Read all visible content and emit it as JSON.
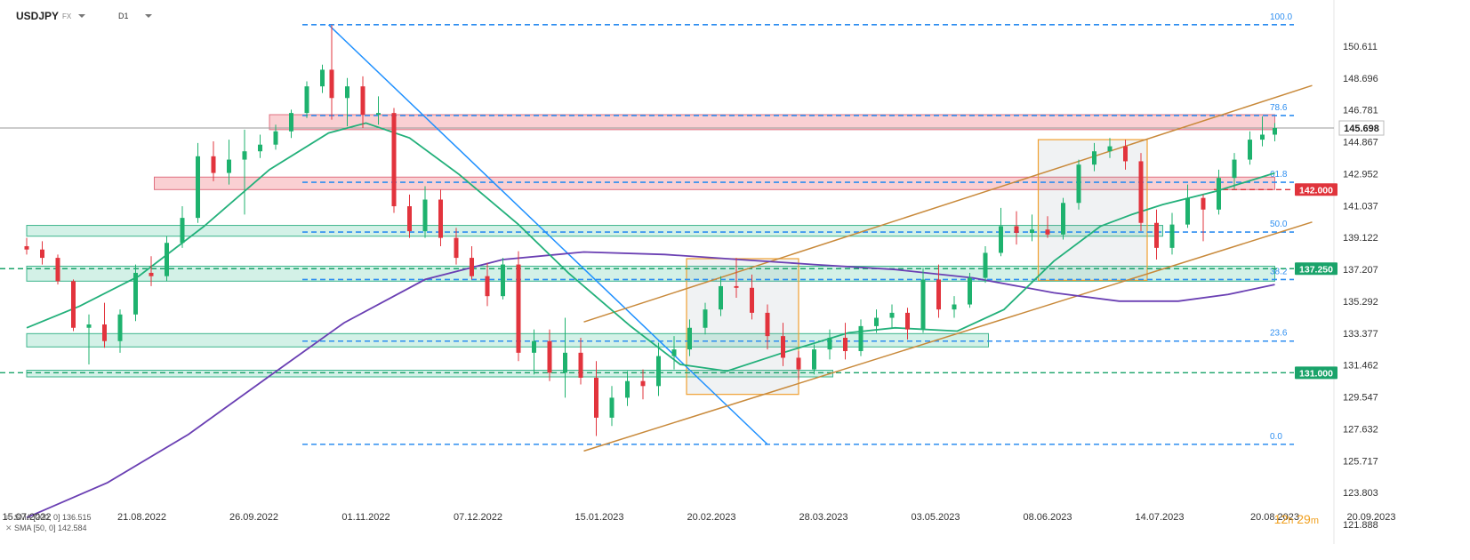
{
  "header": {
    "symbol": "USDJPY",
    "market": "FX",
    "interval": "D1"
  },
  "legend": [
    {
      "label": "SMA [200, 0] 136.515",
      "color": "#6a3fb3",
      "icon": "indicator-icon"
    },
    {
      "label": "SMA [50, 0] 142.584",
      "color": "#22b07a",
      "icon": "indicator-icon"
    }
  ],
  "timer": {
    "hours": "12",
    "h": "h",
    "minutes": "29",
    "m": "m"
  },
  "chart_data": {
    "type": "candlestick",
    "ylim": [
      121.888,
      152.0
    ],
    "y_ticks": [
      "150.611",
      "148.696",
      "146.781",
      "144.867",
      "142.952",
      "141.037",
      "139.122",
      "137.207",
      "135.292",
      "133.377",
      "131.462",
      "129.547",
      "127.632",
      "125.717",
      "123.803",
      "121.888"
    ],
    "x_ticks": [
      "15.07.2022",
      "21.08.2022",
      "26.09.2022",
      "01.11.2022",
      "07.12.2022",
      "15.01.2023",
      "20.02.2023",
      "28.03.2023",
      "03.05.2023",
      "08.06.2023",
      "14.07.2023",
      "20.08.2023",
      "20.09.2023"
    ],
    "last_price": {
      "value": 145.698,
      "label": "145.698"
    },
    "price_labels": [
      {
        "value": 142.0,
        "label": "142.000",
        "color": "#e0343c"
      },
      {
        "value": 137.25,
        "label": "137.250",
        "color": "#1aa36a"
      },
      {
        "value": 131.0,
        "label": "131.000",
        "color": "#1aa36a"
      }
    ],
    "fibonacci": [
      {
        "level": "100.0",
        "price": 151.9
      },
      {
        "level": "78.6",
        "price": 146.45
      },
      {
        "level": "61.8",
        "price": 142.44
      },
      {
        "level": "50.0",
        "price": 139.45
      },
      {
        "level": "38.2",
        "price": 136.6
      },
      {
        "level": "23.6",
        "price": 132.9
      },
      {
        "level": "0.0",
        "price": 126.7
      }
    ],
    "zones": [
      {
        "color": "red",
        "x0": "2022-10-01",
        "x1": "2023-08-20",
        "y0": 145.6,
        "y1": 146.5
      },
      {
        "color": "red",
        "x0": "2022-08-25",
        "x1": "2023-08-20",
        "y0": 142.0,
        "y1": 142.75
      },
      {
        "color": "green",
        "x0": "2022-07-15",
        "x1": "2023-07-15",
        "y0": 139.2,
        "y1": 139.85
      },
      {
        "color": "green",
        "x0": "2022-07-15",
        "x1": "2023-08-20",
        "y0": 136.5,
        "y1": 137.4
      },
      {
        "color": "green",
        "x0": "2022-07-15",
        "x1": "2023-05-20",
        "y0": 132.55,
        "y1": 133.35
      },
      {
        "color": "green",
        "x0": "2022-07-15",
        "x1": "2023-03-31",
        "y0": 130.75,
        "y1": 131.15
      }
    ],
    "boxes": [
      {
        "x0": "2023-02-12",
        "x1": "2023-03-20",
        "y0": 129.7,
        "y1": 137.85
      },
      {
        "x0": "2023-06-05",
        "x1": "2023-07-10",
        "y0": 136.55,
        "y1": 145.0
      }
    ],
    "lines": [
      {
        "color": "#1e90ff",
        "x0": "2022-10-20",
        "y0": 151.9,
        "x1": "2023-03-10",
        "y1": 126.7
      },
      {
        "color": "#c8893a",
        "x0": "2023-01-10",
        "y0": 126.3,
        "x1": "2023-09-01",
        "y1": 140.05
      },
      {
        "color": "#c8893a",
        "x0": "2023-01-10",
        "y0": 134.05,
        "x1": "2023-09-01",
        "y1": 148.25
      }
    ],
    "series": [
      {
        "name": "SMA [200, 0]",
        "color": "#6a3fb3",
        "points": [
          [
            "2022-07-15",
            122.3
          ],
          [
            "2022-08-10",
            124.4
          ],
          [
            "2022-09-05",
            127.3
          ],
          [
            "2022-10-01",
            130.8
          ],
          [
            "2022-10-25",
            134.0
          ],
          [
            "2022-11-20",
            136.6
          ],
          [
            "2022-12-15",
            137.8
          ],
          [
            "2023-01-10",
            138.25
          ],
          [
            "2023-02-05",
            138.1
          ],
          [
            "2023-03-01",
            137.8
          ],
          [
            "2023-03-25",
            137.5
          ],
          [
            "2023-04-20",
            137.2
          ],
          [
            "2023-05-15",
            136.7
          ],
          [
            "2023-06-10",
            135.8
          ],
          [
            "2023-07-01",
            135.3
          ],
          [
            "2023-07-20",
            135.3
          ],
          [
            "2023-08-05",
            135.7
          ],
          [
            "2023-08-20",
            136.3
          ]
        ]
      },
      {
        "name": "SMA [50, 0]",
        "color": "#22b07a",
        "points": [
          [
            "2022-07-15",
            133.7
          ],
          [
            "2022-08-01",
            135.0
          ],
          [
            "2022-08-20",
            136.8
          ],
          [
            "2022-09-10",
            139.8
          ],
          [
            "2022-10-01",
            143.2
          ],
          [
            "2022-10-20",
            145.4
          ],
          [
            "2022-11-01",
            146.0
          ],
          [
            "2022-11-15",
            145.1
          ],
          [
            "2022-12-01",
            142.9
          ],
          [
            "2022-12-20",
            139.9
          ],
          [
            "2023-01-05",
            137.0
          ],
          [
            "2023-01-25",
            133.8
          ],
          [
            "2023-02-10",
            131.5
          ],
          [
            "2023-02-25",
            131.1
          ],
          [
            "2023-03-15",
            132.2
          ],
          [
            "2023-04-05",
            133.4
          ],
          [
            "2023-04-20",
            133.7
          ],
          [
            "2023-05-10",
            133.5
          ],
          [
            "2023-05-25",
            134.8
          ],
          [
            "2023-06-10",
            137.7
          ],
          [
            "2023-06-25",
            139.8
          ],
          [
            "2023-07-05",
            140.5
          ],
          [
            "2023-07-15",
            141.1
          ],
          [
            "2023-08-01",
            141.9
          ],
          [
            "2023-08-20",
            143.0
          ]
        ]
      }
    ],
    "candles": [
      [
        "2022-07-15",
        138.6,
        139.1,
        138.1,
        138.4
      ],
      [
        "2022-07-20",
        138.4,
        138.9,
        137.5,
        137.9
      ],
      [
        "2022-07-25",
        137.9,
        138.1,
        136.3,
        136.5
      ],
      [
        "2022-07-30",
        136.5,
        136.6,
        133.5,
        133.7
      ],
      [
        "2022-08-04",
        133.7,
        134.5,
        131.5,
        133.9
      ],
      [
        "2022-08-09",
        133.9,
        135.2,
        132.5,
        132.9
      ],
      [
        "2022-08-14",
        132.9,
        134.8,
        132.2,
        134.5
      ],
      [
        "2022-08-19",
        134.5,
        137.5,
        134.1,
        137.0
      ],
      [
        "2022-08-24",
        137.0,
        138.0,
        136.2,
        136.8
      ],
      [
        "2022-08-29",
        136.8,
        139.2,
        136.5,
        138.8
      ],
      [
        "2022-09-03",
        138.8,
        141.0,
        138.5,
        140.3
      ],
      [
        "2022-09-08",
        140.3,
        144.8,
        140.0,
        144.0
      ],
      [
        "2022-09-13",
        144.0,
        144.9,
        142.5,
        143.0
      ],
      [
        "2022-09-18",
        143.0,
        145.0,
        142.3,
        143.8
      ],
      [
        "2022-09-23",
        143.8,
        145.6,
        140.5,
        144.3
      ],
      [
        "2022-09-28",
        144.3,
        145.3,
        143.9,
        144.7
      ],
      [
        "2022-10-03",
        144.7,
        145.9,
        144.4,
        145.5
      ],
      [
        "2022-10-08",
        145.5,
        146.8,
        145.1,
        146.6
      ],
      [
        "2022-10-13",
        146.6,
        148.5,
        146.3,
        148.2
      ],
      [
        "2022-10-18",
        148.2,
        149.5,
        147.8,
        149.2
      ],
      [
        "2022-10-21",
        149.2,
        151.9,
        146.2,
        147.5
      ],
      [
        "2022-10-26",
        147.5,
        148.7,
        145.8,
        148.2
      ],
      [
        "2022-10-31",
        148.2,
        148.8,
        145.7,
        146.5
      ],
      [
        "2022-11-05",
        146.5,
        147.6,
        145.9,
        146.6
      ],
      [
        "2022-11-10",
        146.6,
        146.9,
        140.6,
        141.0
      ],
      [
        "2022-11-15",
        141.0,
        141.7,
        139.1,
        139.5
      ],
      [
        "2022-11-20",
        139.5,
        142.2,
        139.1,
        141.4
      ],
      [
        "2022-11-25",
        141.4,
        142.0,
        138.6,
        139.1
      ],
      [
        "2022-11-30",
        139.1,
        139.7,
        137.5,
        137.9
      ],
      [
        "2022-12-05",
        137.9,
        138.6,
        136.6,
        136.8
      ],
      [
        "2022-12-10",
        136.8,
        137.6,
        135.0,
        135.6
      ],
      [
        "2022-12-15",
        135.6,
        137.9,
        135.4,
        137.5
      ],
      [
        "2022-12-20",
        137.5,
        138.3,
        131.7,
        132.2
      ],
      [
        "2022-12-25",
        132.2,
        133.6,
        130.9,
        132.9
      ],
      [
        "2022-12-30",
        132.9,
        133.6,
        130.5,
        131.0
      ],
      [
        "2023-01-04",
        131.0,
        134.3,
        129.5,
        132.2
      ],
      [
        "2023-01-09",
        132.2,
        133.1,
        130.3,
        130.7
      ],
      [
        "2023-01-14",
        130.7,
        131.7,
        127.2,
        128.3
      ],
      [
        "2023-01-19",
        128.3,
        130.2,
        127.8,
        129.5
      ],
      [
        "2023-01-24",
        129.5,
        131.1,
        129.0,
        130.5
      ],
      [
        "2023-01-29",
        130.5,
        131.2,
        129.4,
        130.2
      ],
      [
        "2023-02-03",
        130.2,
        132.8,
        129.6,
        132.0
      ],
      [
        "2023-02-08",
        132.0,
        133.2,
        131.2,
        132.4
      ],
      [
        "2023-02-13",
        132.4,
        134.2,
        132.0,
        133.7
      ],
      [
        "2023-02-18",
        133.7,
        135.2,
        133.3,
        134.8
      ],
      [
        "2023-02-23",
        134.8,
        136.8,
        134.4,
        136.2
      ],
      [
        "2023-02-28",
        136.2,
        137.9,
        135.5,
        136.1
      ],
      [
        "2023-03-05",
        136.1,
        136.9,
        134.2,
        134.6
      ],
      [
        "2023-03-10",
        134.6,
        135.1,
        132.4,
        133.2
      ],
      [
        "2023-03-15",
        133.2,
        134.0,
        131.4,
        131.9
      ],
      [
        "2023-03-20",
        131.9,
        132.3,
        130.6,
        131.2
      ],
      [
        "2023-03-25",
        131.2,
        132.7,
        130.9,
        132.4
      ],
      [
        "2023-03-30",
        132.4,
        133.6,
        131.8,
        133.1
      ],
      [
        "2023-04-04",
        133.1,
        134.0,
        131.8,
        132.3
      ],
      [
        "2023-04-09",
        132.3,
        134.2,
        132.0,
        133.8
      ],
      [
        "2023-04-14",
        133.8,
        134.8,
        133.4,
        134.3
      ],
      [
        "2023-04-19",
        134.3,
        135.1,
        133.7,
        134.6
      ],
      [
        "2023-04-24",
        134.6,
        134.9,
        133.0,
        133.6
      ],
      [
        "2023-04-29",
        133.6,
        137.3,
        133.4,
        136.6
      ],
      [
        "2023-05-04",
        136.6,
        137.5,
        134.3,
        134.8
      ],
      [
        "2023-05-09",
        134.8,
        135.6,
        134.3,
        135.1
      ],
      [
        "2023-05-14",
        135.1,
        137.0,
        134.9,
        136.7
      ],
      [
        "2023-05-19",
        136.7,
        138.6,
        136.4,
        138.2
      ],
      [
        "2023-05-24",
        138.2,
        140.9,
        138.0,
        139.8
      ],
      [
        "2023-05-29",
        139.8,
        140.7,
        138.7,
        139.4
      ],
      [
        "2023-06-03",
        139.4,
        140.5,
        138.9,
        139.6
      ],
      [
        "2023-06-08",
        139.6,
        140.4,
        139.1,
        139.3
      ],
      [
        "2023-06-13",
        139.3,
        141.5,
        139.0,
        141.2
      ],
      [
        "2023-06-18",
        141.2,
        143.8,
        140.8,
        143.5
      ],
      [
        "2023-06-23",
        143.5,
        144.8,
        143.1,
        144.3
      ],
      [
        "2023-06-28",
        144.3,
        145.1,
        143.9,
        144.6
      ],
      [
        "2023-07-03",
        144.6,
        145.0,
        143.2,
        143.7
      ],
      [
        "2023-07-08",
        143.7,
        144.2,
        139.5,
        140.0
      ],
      [
        "2023-07-13",
        140.0,
        140.8,
        137.8,
        138.5
      ],
      [
        "2023-07-18",
        138.5,
        140.6,
        138.1,
        139.9
      ],
      [
        "2023-07-23",
        139.9,
        142.3,
        139.7,
        141.5
      ],
      [
        "2023-07-28",
        141.5,
        141.7,
        138.9,
        140.8
      ],
      [
        "2023-08-02",
        140.8,
        143.2,
        140.5,
        142.7
      ],
      [
        "2023-08-07",
        142.7,
        144.2,
        142.0,
        143.8
      ],
      [
        "2023-08-12",
        143.8,
        145.5,
        143.5,
        145.0
      ],
      [
        "2023-08-16",
        145.0,
        146.4,
        144.6,
        145.3
      ],
      [
        "2023-08-20",
        145.3,
        146.0,
        144.9,
        145.7
      ]
    ]
  }
}
